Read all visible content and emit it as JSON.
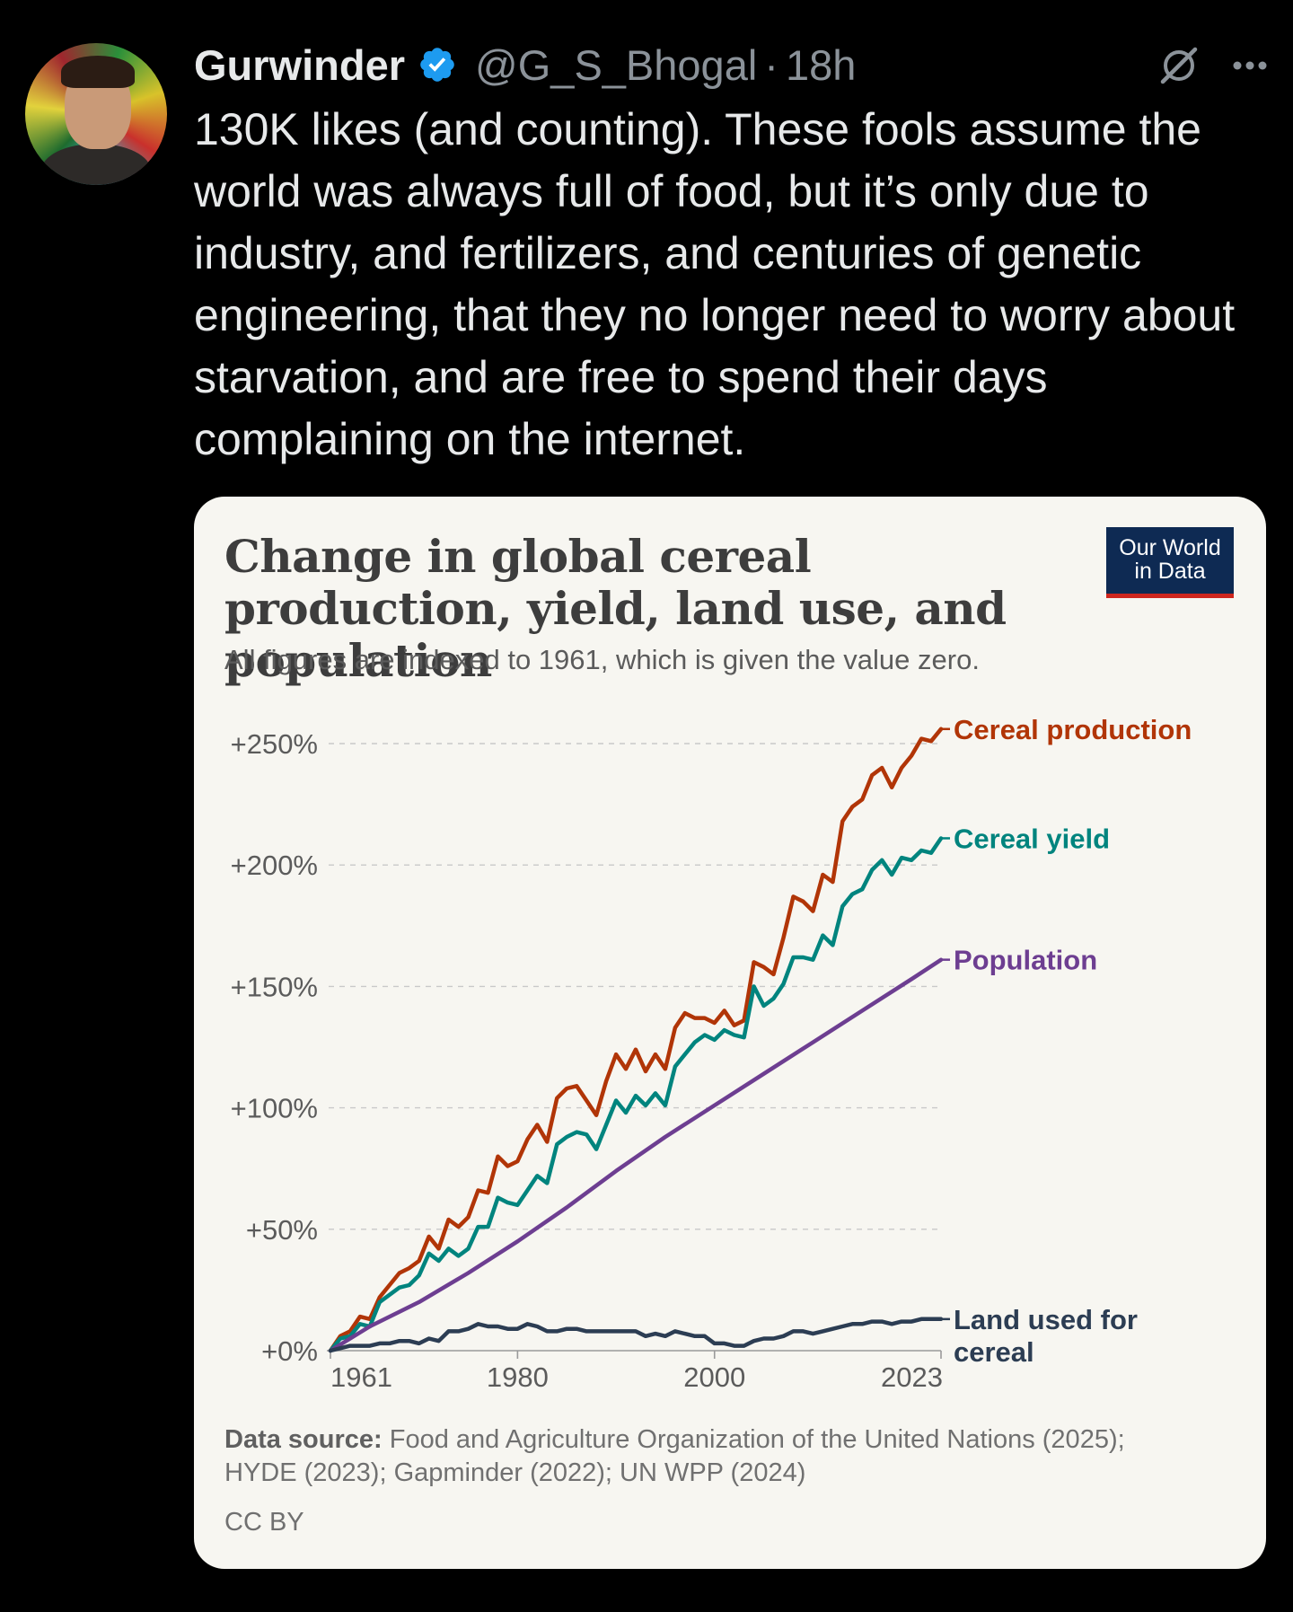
{
  "post": {
    "author_name": "Gurwinder",
    "handle": "@G_S_Bhogal",
    "separator": "·",
    "time": "18h",
    "text": "130K likes (and counting). These fools assume the world was always full of food, but it’s only due to industry, and fertilizers, and centuries of genetic engineering, that they no longer need to worry about starvation, and are free to spend their days complaining on the internet.",
    "verified_color": "#1d9bf0",
    "icons": [
      "verified-badge-icon",
      "grok-icon",
      "more-icon"
    ]
  },
  "card": {
    "logo_line1": "Our World",
    "logo_line2": "in Data",
    "source_label": "Data source:",
    "source_text": "Food and Agriculture Organization of the United Nations (2025);",
    "source_text2": "HYDE (2023); Gapminder (2022); UN WPP (2024)",
    "license": "CC BY"
  },
  "chart_data": {
    "type": "line",
    "title": "Change in global cereal production, yield, land use, and population",
    "subtitle": "All figures are indexed to 1961, which is given the value zero.",
    "x_ticks": [
      "1961",
      "1980",
      "2000",
      "2023"
    ],
    "xlim": [
      1961,
      2023
    ],
    "ylim": [
      0,
      250
    ],
    "y_ticks": [
      "+0%",
      "+50%",
      "+100%",
      "+150%",
      "+200%",
      "+250%"
    ],
    "grid": "horizontal dashed",
    "series": [
      {
        "name": "Cereal production",
        "label_lines": [
          "Cereal production"
        ],
        "color": "#b13507",
        "points": [
          [
            1961,
            0
          ],
          [
            1962,
            6
          ],
          [
            1963,
            8
          ],
          [
            1964,
            14
          ],
          [
            1965,
            13
          ],
          [
            1966,
            22
          ],
          [
            1967,
            27
          ],
          [
            1968,
            32
          ],
          [
            1969,
            34
          ],
          [
            1970,
            37
          ],
          [
            1971,
            47
          ],
          [
            1972,
            42
          ],
          [
            1973,
            54
          ],
          [
            1974,
            51
          ],
          [
            1975,
            55
          ],
          [
            1976,
            66
          ],
          [
            1977,
            65
          ],
          [
            1978,
            80
          ],
          [
            1979,
            76
          ],
          [
            1980,
            78
          ],
          [
            1981,
            87
          ],
          [
            1982,
            93
          ],
          [
            1983,
            86
          ],
          [
            1984,
            104
          ],
          [
            1985,
            108
          ],
          [
            1986,
            109
          ],
          [
            1987,
            103
          ],
          [
            1988,
            97
          ],
          [
            1989,
            111
          ],
          [
            1990,
            122
          ],
          [
            1991,
            116
          ],
          [
            1992,
            124
          ],
          [
            1993,
            115
          ],
          [
            1994,
            122
          ],
          [
            1995,
            116
          ],
          [
            1996,
            133
          ],
          [
            1997,
            139
          ],
          [
            1998,
            137
          ],
          [
            1999,
            137
          ],
          [
            2000,
            135
          ],
          [
            2001,
            140
          ],
          [
            2002,
            134
          ],
          [
            2003,
            136
          ],
          [
            2004,
            160
          ],
          [
            2005,
            158
          ],
          [
            2006,
            155
          ],
          [
            2007,
            170
          ],
          [
            2008,
            187
          ],
          [
            2009,
            185
          ],
          [
            2010,
            181
          ],
          [
            2011,
            196
          ],
          [
            2012,
            193
          ],
          [
            2013,
            218
          ],
          [
            2014,
            224
          ],
          [
            2015,
            227
          ],
          [
            2016,
            237
          ],
          [
            2017,
            240
          ],
          [
            2018,
            232
          ],
          [
            2019,
            240
          ],
          [
            2020,
            245
          ],
          [
            2021,
            252
          ],
          [
            2022,
            251
          ],
          [
            2023,
            256
          ]
        ]
      },
      {
        "name": "Cereal yield",
        "label_lines": [
          "Cereal yield"
        ],
        "color": "#00847e",
        "points": [
          [
            1961,
            0
          ],
          [
            1962,
            5
          ],
          [
            1963,
            6
          ],
          [
            1964,
            11
          ],
          [
            1965,
            10
          ],
          [
            1966,
            20
          ],
          [
            1967,
            23
          ],
          [
            1968,
            26
          ],
          [
            1969,
            27
          ],
          [
            1970,
            31
          ],
          [
            1971,
            40
          ],
          [
            1972,
            37
          ],
          [
            1973,
            42
          ],
          [
            1974,
            39
          ],
          [
            1975,
            42
          ],
          [
            1976,
            51
          ],
          [
            1977,
            51
          ],
          [
            1978,
            63
          ],
          [
            1979,
            61
          ],
          [
            1980,
            60
          ],
          [
            1981,
            66
          ],
          [
            1982,
            72
          ],
          [
            1983,
            69
          ],
          [
            1984,
            85
          ],
          [
            1985,
            88
          ],
          [
            1986,
            90
          ],
          [
            1987,
            89
          ],
          [
            1988,
            83
          ],
          [
            1989,
            93
          ],
          [
            1990,
            103
          ],
          [
            1991,
            98
          ],
          [
            1992,
            105
          ],
          [
            1993,
            101
          ],
          [
            1994,
            106
          ],
          [
            1995,
            101
          ],
          [
            1996,
            117
          ],
          [
            1997,
            122
          ],
          [
            1998,
            127
          ],
          [
            1999,
            130
          ],
          [
            2000,
            128
          ],
          [
            2001,
            132
          ],
          [
            2002,
            130
          ],
          [
            2003,
            129
          ],
          [
            2004,
            150
          ],
          [
            2005,
            142
          ],
          [
            2006,
            145
          ],
          [
            2007,
            151
          ],
          [
            2008,
            162
          ],
          [
            2009,
            162
          ],
          [
            2010,
            161
          ],
          [
            2011,
            171
          ],
          [
            2012,
            167
          ],
          [
            2013,
            183
          ],
          [
            2014,
            188
          ],
          [
            2015,
            190
          ],
          [
            2016,
            198
          ],
          [
            2017,
            202
          ],
          [
            2018,
            196
          ],
          [
            2019,
            203
          ],
          [
            2020,
            202
          ],
          [
            2021,
            206
          ],
          [
            2022,
            205
          ],
          [
            2023,
            211
          ]
        ]
      },
      {
        "name": "Population",
        "label_lines": [
          "Population"
        ],
        "color": "#6d3e91",
        "points": [
          [
            1961,
            0
          ],
          [
            1965,
            10
          ],
          [
            1970,
            20
          ],
          [
            1975,
            32
          ],
          [
            1980,
            45
          ],
          [
            1985,
            59
          ],
          [
            1990,
            74
          ],
          [
            1995,
            88
          ],
          [
            2000,
            101
          ],
          [
            2005,
            114
          ],
          [
            2010,
            127
          ],
          [
            2015,
            140
          ],
          [
            2020,
            153
          ],
          [
            2023,
            161
          ]
        ]
      },
      {
        "name": "Land used for cereal",
        "label_lines": [
          "Land used for",
          "cereal"
        ],
        "color": "#2c3d53",
        "points": [
          [
            1961,
            0
          ],
          [
            1962,
            1
          ],
          [
            1963,
            2
          ],
          [
            1964,
            2
          ],
          [
            1965,
            2
          ],
          [
            1966,
            3
          ],
          [
            1967,
            3
          ],
          [
            1968,
            4
          ],
          [
            1969,
            4
          ],
          [
            1970,
            3
          ],
          [
            1971,
            5
          ],
          [
            1972,
            4
          ],
          [
            1973,
            8
          ],
          [
            1974,
            8
          ],
          [
            1975,
            9
          ],
          [
            1976,
            11
          ],
          [
            1977,
            10
          ],
          [
            1978,
            10
          ],
          [
            1979,
            9
          ],
          [
            1980,
            9
          ],
          [
            1981,
            11
          ],
          [
            1982,
            10
          ],
          [
            1983,
            8
          ],
          [
            1984,
            8
          ],
          [
            1985,
            9
          ],
          [
            1986,
            9
          ],
          [
            1987,
            8
          ],
          [
            1988,
            8
          ],
          [
            1989,
            8
          ],
          [
            1990,
            8
          ],
          [
            1991,
            8
          ],
          [
            1992,
            8
          ],
          [
            1993,
            6
          ],
          [
            1994,
            7
          ],
          [
            1995,
            6
          ],
          [
            1996,
            8
          ],
          [
            1997,
            7
          ],
          [
            1998,
            6
          ],
          [
            1999,
            6
          ],
          [
            2000,
            3
          ],
          [
            2001,
            3
          ],
          [
            2002,
            2
          ],
          [
            2003,
            2
          ],
          [
            2004,
            4
          ],
          [
            2005,
            5
          ],
          [
            2006,
            5
          ],
          [
            2007,
            6
          ],
          [
            2008,
            8
          ],
          [
            2009,
            8
          ],
          [
            2010,
            7
          ],
          [
            2011,
            8
          ],
          [
            2012,
            9
          ],
          [
            2013,
            10
          ],
          [
            2014,
            11
          ],
          [
            2015,
            11
          ],
          [
            2016,
            12
          ],
          [
            2017,
            12
          ],
          [
            2018,
            11
          ],
          [
            2019,
            12
          ],
          [
            2020,
            12
          ],
          [
            2021,
            13
          ],
          [
            2022,
            13
          ],
          [
            2023,
            13
          ]
        ]
      }
    ]
  }
}
